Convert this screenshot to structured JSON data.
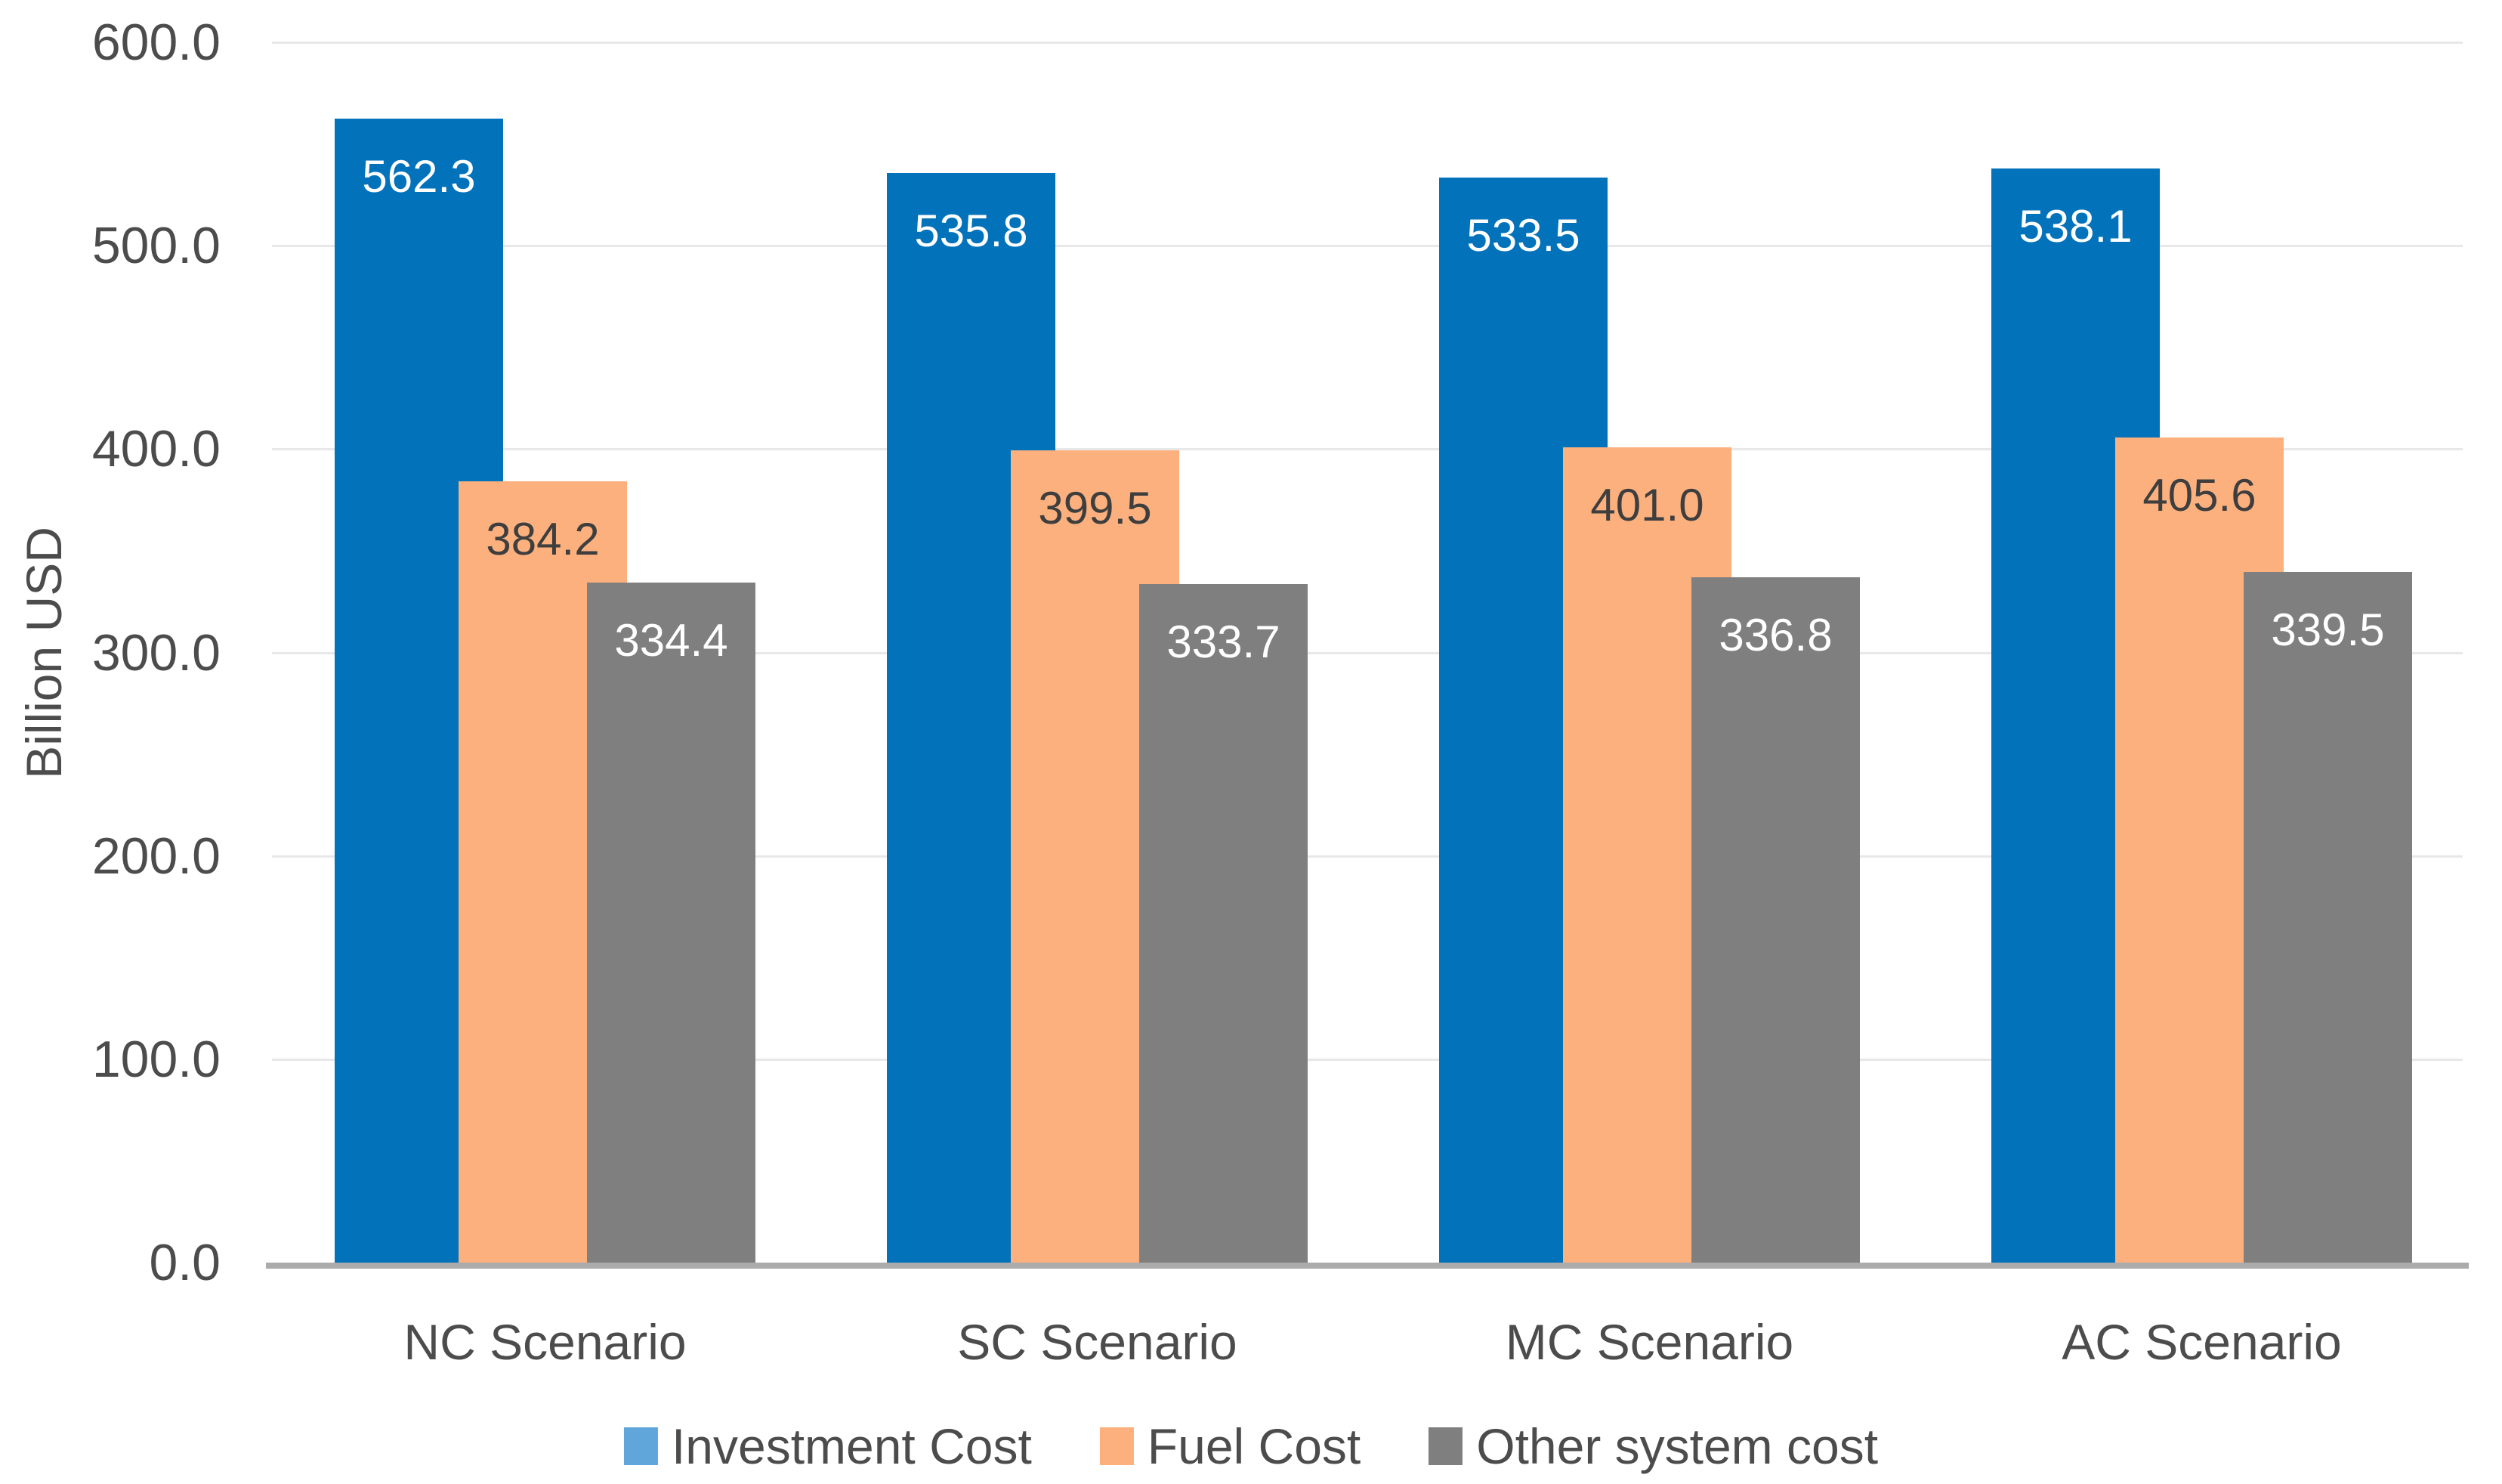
{
  "chart_data": {
    "type": "bar",
    "ylabel": "Billion USD",
    "categories": [
      "NC Scenario",
      "SC Scenario",
      "MC Scenario",
      "AC Scenario"
    ],
    "series": [
      {
        "name": "Investment Cost",
        "color": "#0272BB",
        "legend_color": "#60A6DB",
        "label_color": "#FFFFFF",
        "values": [
          562.3,
          535.8,
          533.5,
          538.1
        ]
      },
      {
        "name": "Fuel Cost",
        "color": "#FBB07E",
        "legend_color": "#FBB07E",
        "label_color": "#3E3E3E",
        "values": [
          384.2,
          399.5,
          401.0,
          405.6
        ]
      },
      {
        "name": "Other system cost",
        "color": "#7F7F7F",
        "legend_color": "#7F7F7F",
        "label_color": "#FFFFFF",
        "values": [
          334.4,
          333.7,
          336.8,
          339.5
        ]
      }
    ],
    "ylim": [
      0,
      600
    ],
    "ytick_step": 100,
    "ytick_labels": [
      "0.0",
      "100.0",
      "200.0",
      "300.0",
      "400.0",
      "500.0",
      "600.0"
    ],
    "value_label_decimals": 1,
    "grid": true,
    "legend_position": "bottom",
    "bar_overlap_pct": 25
  },
  "colors": {
    "text": "#4C4C4C",
    "gridline": "#E8E8E8",
    "axis_line": "#ABABAB",
    "background": "#FFFFFF"
  }
}
